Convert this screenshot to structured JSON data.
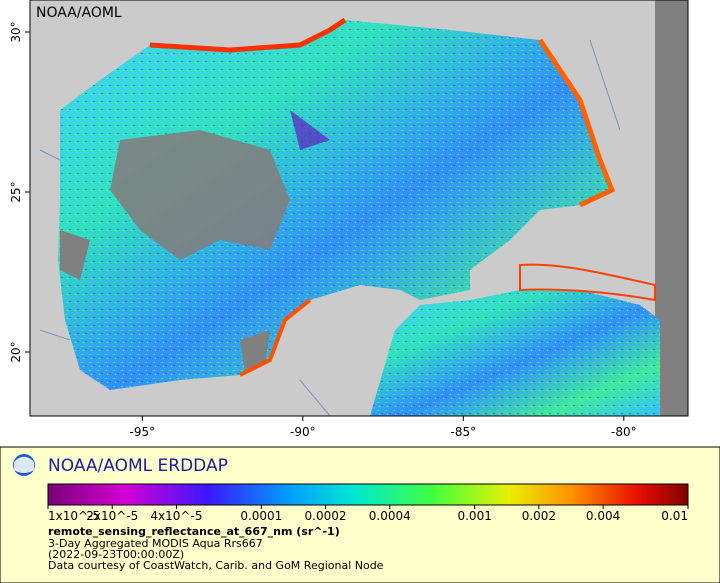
{
  "map": {
    "label": "NOAA/AOML",
    "xlim": [
      -98.5,
      -78
    ],
    "ylim": [
      18,
      31
    ],
    "xticks": [
      {
        "value": -95,
        "label": "-95°"
      },
      {
        "value": -90,
        "label": "-90°"
      },
      {
        "value": -85,
        "label": "-85°"
      },
      {
        "value": -80,
        "label": "-80°"
      }
    ],
    "yticks": [
      {
        "value": 20,
        "label": "20°"
      },
      {
        "value": 25,
        "label": "25°"
      },
      {
        "value": 30,
        "label": "30°"
      }
    ]
  },
  "legend": {
    "title": "NOAA/AOML ERDDAP",
    "colorbar": {
      "lim": [
        1e-05,
        0.01
      ],
      "log": true,
      "ticks": [
        {
          "value": 1e-05,
          "label": "1x10^-5"
        },
        {
          "value": 2e-05,
          "label": "2x10^-5"
        },
        {
          "value": 4e-05,
          "label": "4x10^-5"
        },
        0.0001,
        0.0002,
        0.0004,
        0.001,
        0.002,
        0.004,
        0.01
      ]
    },
    "variable": "remote_sensing_reflectance_at_667_nm (sr^-1)",
    "lines": [
      "3-Day Aggregated MODIS Aqua Rrs667",
      "(2022-09-23T00:00:00Z)",
      "Data courtesy of CoastWatch, Carib. and GoM Regional Node"
    ]
  }
}
